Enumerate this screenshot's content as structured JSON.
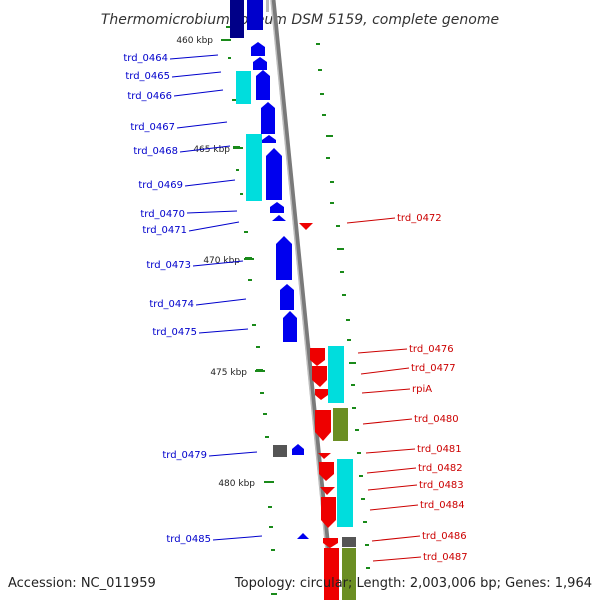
{
  "title": "Thermomicrobium roseum DSM 5159, complete genome",
  "accession": "Accession: NC_011959",
  "topology": "Topology: circular; Length: 2,003,006 bp; Genes: 1,964",
  "colors": {
    "forward": "#0000ee",
    "reverse": "#ee0000",
    "cog_cyan": "#00dddd",
    "cog_olive": "#6b8e23",
    "cog_grey": "#555555",
    "backbone": "#888888",
    "gc_mark": "#1a8a1a"
  },
  "ticks": [
    {
      "label": "460 kbp"
    },
    {
      "label": "465 kbp"
    },
    {
      "label": "470 kbp"
    },
    {
      "label": "475 kbp"
    },
    {
      "label": "480 kbp"
    }
  ],
  "forward_genes": [
    {
      "name": "trd_0464"
    },
    {
      "name": "trd_0465"
    },
    {
      "name": "trd_0466"
    },
    {
      "name": "trd_0467"
    },
    {
      "name": "trd_0468"
    },
    {
      "name": "trd_0469"
    },
    {
      "name": "trd_0470"
    },
    {
      "name": "trd_0471"
    },
    {
      "name": "trd_0473"
    },
    {
      "name": "trd_0474"
    },
    {
      "name": "trd_0475"
    },
    {
      "name": "trd_0479"
    },
    {
      "name": "trd_0485"
    }
  ],
  "reverse_genes": [
    {
      "name": "trd_0472"
    },
    {
      "name": "trd_0476"
    },
    {
      "name": "trd_0477"
    },
    {
      "name": "rpiA"
    },
    {
      "name": "trd_0480"
    },
    {
      "name": "trd_0481"
    },
    {
      "name": "trd_0482"
    },
    {
      "name": "trd_0483"
    },
    {
      "name": "trd_0484"
    },
    {
      "name": "trd_0486"
    },
    {
      "name": "trd_0487"
    }
  ]
}
